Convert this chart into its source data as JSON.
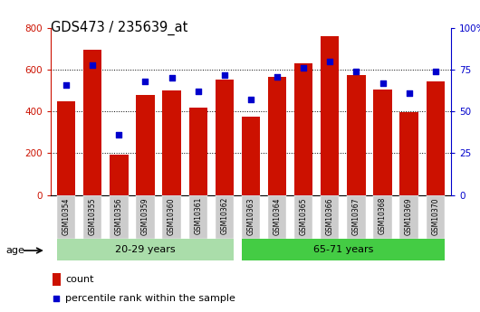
{
  "title": "GDS473 / 235639_at",
  "samples": [
    "GSM10354",
    "GSM10355",
    "GSM10356",
    "GSM10359",
    "GSM10360",
    "GSM10361",
    "GSM10362",
    "GSM10363",
    "GSM10364",
    "GSM10365",
    "GSM10366",
    "GSM10367",
    "GSM10368",
    "GSM10369",
    "GSM10370"
  ],
  "counts": [
    450,
    695,
    195,
    480,
    500,
    420,
    555,
    375,
    565,
    630,
    760,
    575,
    505,
    395,
    545
  ],
  "percentiles": [
    66,
    78,
    36,
    68,
    70,
    62,
    72,
    57,
    71,
    76,
    80,
    74,
    67,
    61,
    74
  ],
  "group1_label": "20-29 years",
  "group2_label": "65-71 years",
  "group1_indices": [
    0,
    1,
    2,
    3,
    4,
    5,
    6
  ],
  "group2_indices": [
    7,
    8,
    9,
    10,
    11,
    12,
    13,
    14
  ],
  "bar_color": "#CC1100",
  "dot_color": "#0000CC",
  "group1_bg": "#AADDAA",
  "group2_bg": "#44CC44",
  "xlabel_bg": "#CCCCCC",
  "left_axis_color": "#CC1100",
  "right_axis_color": "#0000CC",
  "ylim_left": [
    0,
    800
  ],
  "ylim_right": [
    0,
    100
  ],
  "yticks_left": [
    0,
    200,
    400,
    600,
    800
  ],
  "yticks_right": [
    0,
    25,
    50,
    75,
    100
  ],
  "ytick_labels_right": [
    "0",
    "25",
    "50",
    "75",
    "100%"
  ],
  "legend_count_label": "count",
  "legend_pct_label": "percentile rank within the sample",
  "age_label": "age"
}
